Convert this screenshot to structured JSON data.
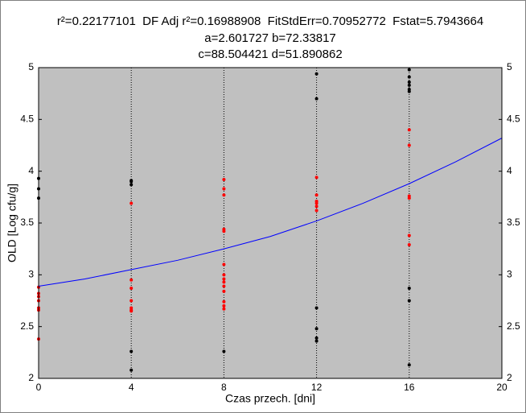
{
  "chart_data": {
    "type": "scatter",
    "title_lines": [
      "r²=0.22177101  DF Adj r²=0.16988908  FitStdErr=0.70952772  Fstat=5.7943664",
      "a=2.601727 b=72.33817",
      "c=88.504421 d=51.890862"
    ],
    "x_label": "Czas przech. [dni]",
    "y_label": "OLD [Log cfu/g]",
    "xlim": [
      0,
      20
    ],
    "xticks": [
      0,
      4,
      8,
      12,
      16,
      20
    ],
    "ylim": [
      2,
      5
    ],
    "yticks": [
      2,
      2.5,
      3,
      3.5,
      4,
      4.5,
      5
    ],
    "grid": true,
    "background": "#c0c0c0",
    "series": [
      {
        "color": "#000000",
        "mode": "points",
        "x": [
          0,
          0,
          0,
          4,
          4,
          4,
          4,
          4,
          8,
          12,
          12,
          12,
          12,
          12,
          12,
          16,
          16,
          16,
          16,
          16,
          16,
          16,
          16,
          16
        ],
        "values": [
          3.93,
          3.83,
          3.74,
          3.91,
          3.9,
          3.87,
          2.26,
          2.08,
          2.26,
          4.94,
          4.7,
          2.68,
          2.48,
          2.39,
          2.36,
          4.98,
          4.91,
          4.86,
          4.83,
          4.79,
          4.77,
          2.87,
          2.75,
          2.13
        ]
      },
      {
        "color": "#ff0000",
        "mode": "points",
        "x": [
          0,
          0,
          0,
          0,
          0,
          0,
          0,
          4,
          4,
          4,
          4,
          4,
          4,
          4,
          8,
          8,
          8,
          8,
          8,
          8,
          8,
          8,
          8,
          8,
          8,
          8,
          8,
          8,
          12,
          12,
          12,
          12,
          12,
          12,
          16,
          16,
          16,
          16,
          16,
          16
        ],
        "values": [
          2.88,
          2.82,
          2.79,
          2.75,
          2.68,
          2.66,
          2.38,
          3.69,
          2.95,
          2.87,
          2.75,
          2.68,
          2.66,
          2.65,
          3.92,
          3.83,
          3.77,
          3.44,
          3.42,
          3.1,
          3.0,
          2.96,
          2.93,
          2.89,
          2.84,
          2.74,
          2.7,
          2.67,
          3.94,
          3.77,
          3.71,
          3.69,
          3.66,
          3.62,
          4.4,
          4.25,
          3.76,
          3.74,
          3.38,
          3.29
        ]
      },
      {
        "color": "#0000ff",
        "mode": "line",
        "x": [
          0,
          2,
          4,
          6,
          8,
          10,
          12,
          14,
          16,
          18,
          20
        ],
        "values": [
          2.89,
          2.96,
          3.05,
          3.14,
          3.25,
          3.37,
          3.52,
          3.69,
          3.88,
          4.09,
          4.32
        ]
      }
    ]
  }
}
